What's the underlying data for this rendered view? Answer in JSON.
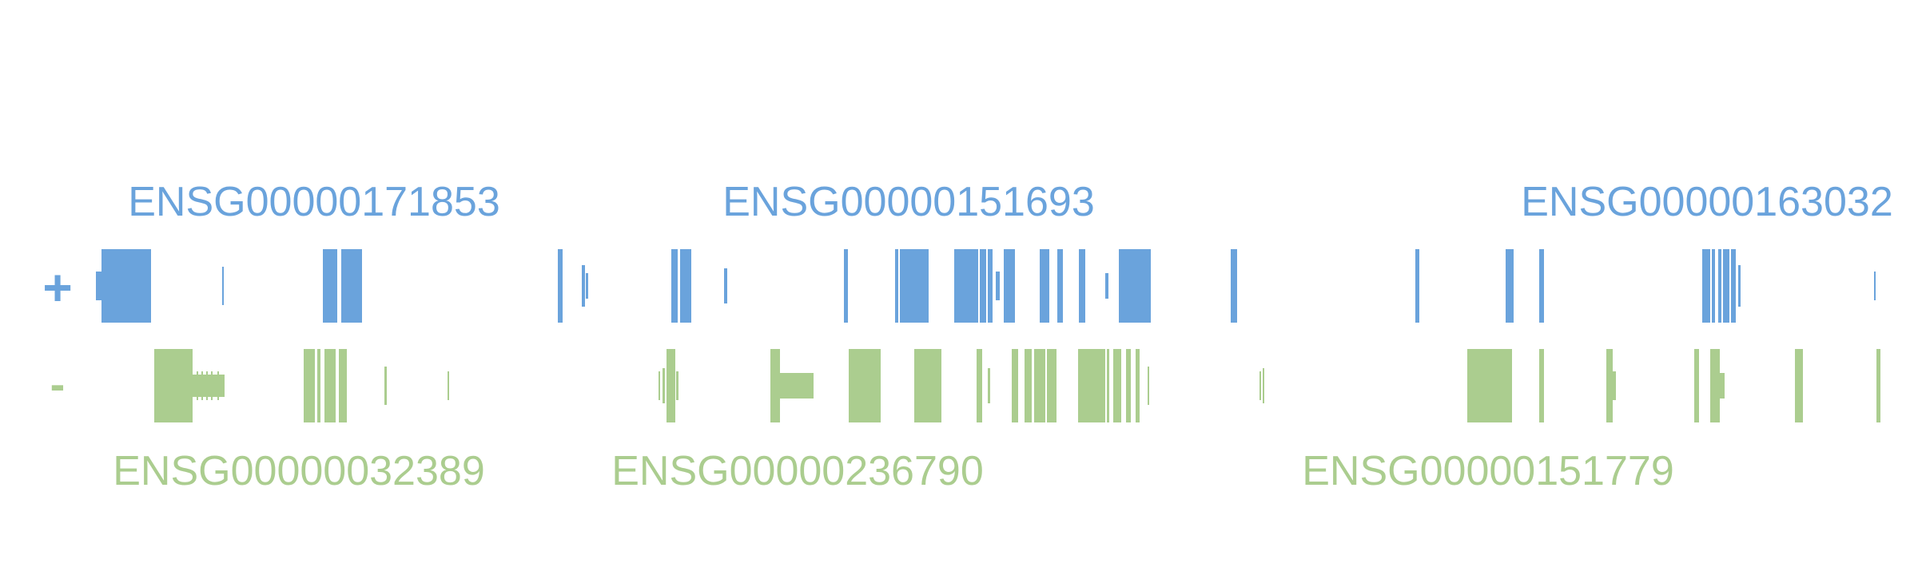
{
  "colors": {
    "plus_strand": "#6aa3dc",
    "minus_strand": "#abcd8f",
    "background": "#ffffff"
  },
  "strands": {
    "plus": {
      "symbol": "+"
    },
    "minus": {
      "symbol": "-"
    }
  },
  "genes": [
    {
      "id": "ENSG00000171853",
      "strand": "plus"
    },
    {
      "id": "ENSG00000151693",
      "strand": "plus"
    },
    {
      "id": "ENSG00000163032",
      "strand": "plus"
    },
    {
      "id": "ENSG00000032389",
      "strand": "minus"
    },
    {
      "id": "ENSG00000236790",
      "strand": "minus"
    },
    {
      "id": "ENSG00000151779",
      "strand": "minus"
    }
  ]
}
